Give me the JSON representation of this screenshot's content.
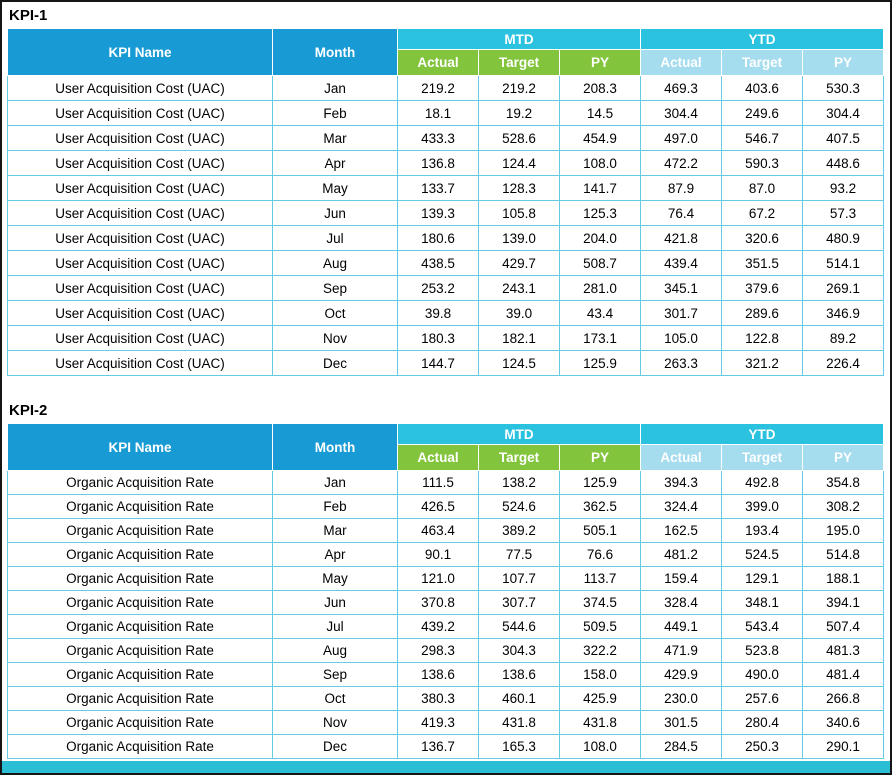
{
  "sections": [
    {
      "label": "KPI-1"
    },
    {
      "label": "KPI-2"
    }
  ],
  "headers": {
    "kpi_name": "KPI Name",
    "month": "Month",
    "mtd": "MTD",
    "ytd": "YTD",
    "actual": "Actual",
    "target": "Target",
    "py": "PY"
  },
  "tables": [
    {
      "kpi": "User Acquisition Cost (UAC)",
      "rows": [
        [
          "User Acquisition Cost (UAC)",
          "Jan",
          "219.2",
          "219.2",
          "208.3",
          "469.3",
          "403.6",
          "530.3"
        ],
        [
          "User Acquisition Cost (UAC)",
          "Feb",
          "18.1",
          "19.2",
          "14.5",
          "304.4",
          "249.6",
          "304.4"
        ],
        [
          "User Acquisition Cost (UAC)",
          "Mar",
          "433.3",
          "528.6",
          "454.9",
          "497.0",
          "546.7",
          "407.5"
        ],
        [
          "User Acquisition Cost (UAC)",
          "Apr",
          "136.8",
          "124.4",
          "108.0",
          "472.2",
          "590.3",
          "448.6"
        ],
        [
          "User Acquisition Cost (UAC)",
          "May",
          "133.7",
          "128.3",
          "141.7",
          "87.9",
          "87.0",
          "93.2"
        ],
        [
          "User Acquisition Cost (UAC)",
          "Jun",
          "139.3",
          "105.8",
          "125.3",
          "76.4",
          "67.2",
          "57.3"
        ],
        [
          "User Acquisition Cost (UAC)",
          "Jul",
          "180.6",
          "139.0",
          "204.0",
          "421.8",
          "320.6",
          "480.9"
        ],
        [
          "User Acquisition Cost (UAC)",
          "Aug",
          "438.5",
          "429.7",
          "508.7",
          "439.4",
          "351.5",
          "514.1"
        ],
        [
          "User Acquisition Cost (UAC)",
          "Sep",
          "253.2",
          "243.1",
          "281.0",
          "345.1",
          "379.6",
          "269.1"
        ],
        [
          "User Acquisition Cost (UAC)",
          "Oct",
          "39.8",
          "39.0",
          "43.4",
          "301.7",
          "289.6",
          "346.9"
        ],
        [
          "User Acquisition Cost (UAC)",
          "Nov",
          "180.3",
          "182.1",
          "173.1",
          "105.0",
          "122.8",
          "89.2"
        ],
        [
          "User Acquisition Cost (UAC)",
          "Dec",
          "144.7",
          "124.5",
          "125.9",
          "263.3",
          "321.2",
          "226.4"
        ]
      ]
    },
    {
      "kpi": "Organic Acquisition Rate",
      "rows": [
        [
          "Organic Acquisition Rate",
          "Jan",
          "111.5",
          "138.2",
          "125.9",
          "394.3",
          "492.8",
          "354.8"
        ],
        [
          "Organic Acquisition Rate",
          "Feb",
          "426.5",
          "524.6",
          "362.5",
          "324.4",
          "399.0",
          "308.2"
        ],
        [
          "Organic Acquisition Rate",
          "Mar",
          "463.4",
          "389.2",
          "505.1",
          "162.5",
          "193.4",
          "195.0"
        ],
        [
          "Organic Acquisition Rate",
          "Apr",
          "90.1",
          "77.5",
          "76.6",
          "481.2",
          "524.5",
          "514.8"
        ],
        [
          "Organic Acquisition Rate",
          "May",
          "121.0",
          "107.7",
          "113.7",
          "159.4",
          "129.1",
          "188.1"
        ],
        [
          "Organic Acquisition Rate",
          "Jun",
          "370.8",
          "307.7",
          "374.5",
          "328.4",
          "348.1",
          "394.1"
        ],
        [
          "Organic Acquisition Rate",
          "Jul",
          "439.2",
          "544.6",
          "509.5",
          "449.1",
          "543.4",
          "507.4"
        ],
        [
          "Organic Acquisition Rate",
          "Aug",
          "298.3",
          "304.3",
          "322.2",
          "471.9",
          "523.8",
          "481.3"
        ],
        [
          "Organic Acquisition Rate",
          "Sep",
          "138.6",
          "138.6",
          "158.0",
          "429.9",
          "490.0",
          "481.4"
        ],
        [
          "Organic Acquisition Rate",
          "Oct",
          "380.3",
          "460.1",
          "425.9",
          "230.0",
          "257.6",
          "266.8"
        ],
        [
          "Organic Acquisition Rate",
          "Nov",
          "419.3",
          "431.8",
          "431.8",
          "301.5",
          "280.4",
          "340.6"
        ],
        [
          "Organic Acquisition Rate",
          "Dec",
          "136.7",
          "165.3",
          "108.0",
          "284.5",
          "250.3",
          "290.1"
        ]
      ]
    }
  ],
  "colors": {
    "header_blue": "#189BD5",
    "band_cyan": "#2BC2E0",
    "mtd_green": "#83C43D",
    "ytd_light_blue": "#A5DCEE",
    "cell_border": "#68CBE6",
    "bottom_band": "#2BBFD6"
  }
}
